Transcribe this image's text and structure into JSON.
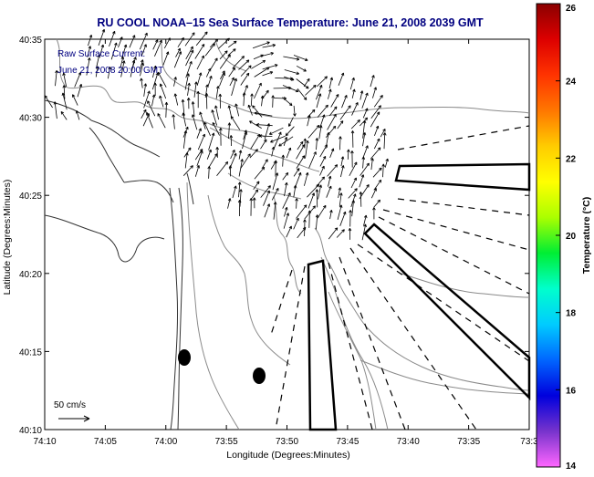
{
  "title": "RU COOL  NOAA–15  Sea Surface Temperature:  June 21, 2008 2039 GMT",
  "legend": {
    "line1": "Raw Surface Current:",
    "line2": "June 21, 2008 20:00 GMT",
    "scale_label": "50 cm/s"
  },
  "axes": {
    "xlabel": "Longitude (Degrees:Minutes)",
    "ylabel": "Latitude (Degrees:Minutes)",
    "xticks": [
      "74:10",
      "74:05",
      "74:00",
      "73:55",
      "73:50",
      "73:45",
      "73:40",
      "73:35",
      "73:3"
    ],
    "yticks": [
      "40:35",
      "40:30",
      "40:25",
      "40:20",
      "40:15",
      "40:10"
    ]
  },
  "colorbar": {
    "label": "Temperature (°C)",
    "ticks": [
      "26",
      "24",
      "22",
      "20",
      "18",
      "16",
      "14"
    ],
    "colors": [
      "#8b0000",
      "#dd0000",
      "#ff3300",
      "#ff7700",
      "#ffcc00",
      "#ffff00",
      "#aaff00",
      "#00ee33",
      "#00ffcc",
      "#00ccff",
      "#0066ff",
      "#0000dd",
      "#7733cc",
      "#ff66ff"
    ]
  },
  "colors": {
    "title": "#000080",
    "ink": "#000000",
    "contour": "#888888"
  }
}
